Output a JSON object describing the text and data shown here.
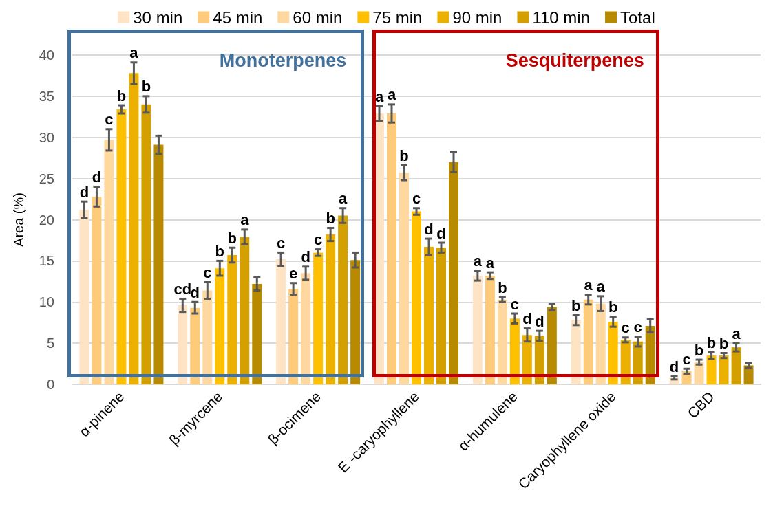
{
  "chart_data": {
    "type": "bar",
    "ylabel": "Area (%)",
    "categories": [
      "α-pinene",
      "β-myrcene",
      "β-ocimene",
      "E -caryophyllene",
      "α-humulene",
      "Caryophyllene oxide",
      "CBD"
    ],
    "series": [
      {
        "name": "30 min",
        "color": "#fee4c4",
        "values": [
          21.2,
          9.6,
          15.2,
          32.9,
          13.2,
          7.8,
          0.8
        ],
        "errors": [
          1.0,
          0.8,
          0.8,
          0.9,
          0.6,
          0.6,
          0.2
        ],
        "value_labels": [
          "d",
          "cd",
          "c",
          "a",
          "a",
          "b",
          "d"
        ]
      },
      {
        "name": "45 min",
        "color": "#fecb7a",
        "values": [
          22.8,
          9.3,
          11.6,
          32.9,
          13.2,
          10.3,
          1.6
        ],
        "errors": [
          1.2,
          0.7,
          0.7,
          1.1,
          0.4,
          0.6,
          0.3
        ],
        "value_labels": [
          "d",
          "d",
          "e",
          "a",
          "a",
          "a",
          "c"
        ]
      },
      {
        "name": "60 min",
        "color": "#fed89e",
        "values": [
          29.7,
          11.4,
          13.5,
          25.7,
          10.3,
          9.8,
          2.7
        ],
        "errors": [
          1.3,
          1.0,
          0.8,
          0.9,
          0.3,
          0.9,
          0.3
        ],
        "value_labels": [
          "c",
          "c",
          "d",
          "b",
          "b",
          "a",
          "b"
        ]
      },
      {
        "name": "75 min",
        "color": "#ffc000",
        "values": [
          33.4,
          14.1,
          16.0,
          21.0,
          8.0,
          7.6,
          3.5
        ],
        "errors": [
          0.5,
          0.9,
          0.4,
          0.4,
          0.6,
          0.6,
          0.4
        ],
        "value_labels": [
          "b",
          "b",
          "c",
          "c",
          "c",
          "b",
          "b"
        ]
      },
      {
        "name": "90 min",
        "color": "#ebb000",
        "values": [
          37.8,
          15.7,
          18.2,
          16.7,
          6.0,
          5.4,
          3.5
        ],
        "errors": [
          1.3,
          0.9,
          0.8,
          1.0,
          0.8,
          0.3,
          0.3
        ],
        "value_labels": [
          "a",
          "b",
          "b",
          "d",
          "d",
          "c",
          "b"
        ]
      },
      {
        "name": "110 min",
        "color": "#d4a000",
        "values": [
          34.0,
          17.9,
          20.5,
          16.6,
          5.9,
          5.2,
          4.5
        ],
        "errors": [
          1.0,
          0.9,
          0.9,
          0.6,
          0.6,
          0.6,
          0.5
        ],
        "value_labels": [
          "b",
          "a",
          "a",
          "d",
          "d",
          "c",
          "a"
        ]
      },
      {
        "name": "Total",
        "color": "#b88a00",
        "values": [
          29.1,
          12.2,
          15.1,
          27.0,
          9.4,
          7.1,
          2.3
        ],
        "errors": [
          1.1,
          0.8,
          0.9,
          1.2,
          0.4,
          0.8,
          0.3
        ]
      }
    ],
    "ylim": [
      0,
      40
    ],
    "yticks": [
      0,
      5,
      10,
      15,
      20,
      25,
      30,
      35,
      40
    ],
    "grid": "y",
    "legend": "top",
    "annotations": [
      "Monoterpenes",
      "Sesquiterpenes"
    ]
  }
}
